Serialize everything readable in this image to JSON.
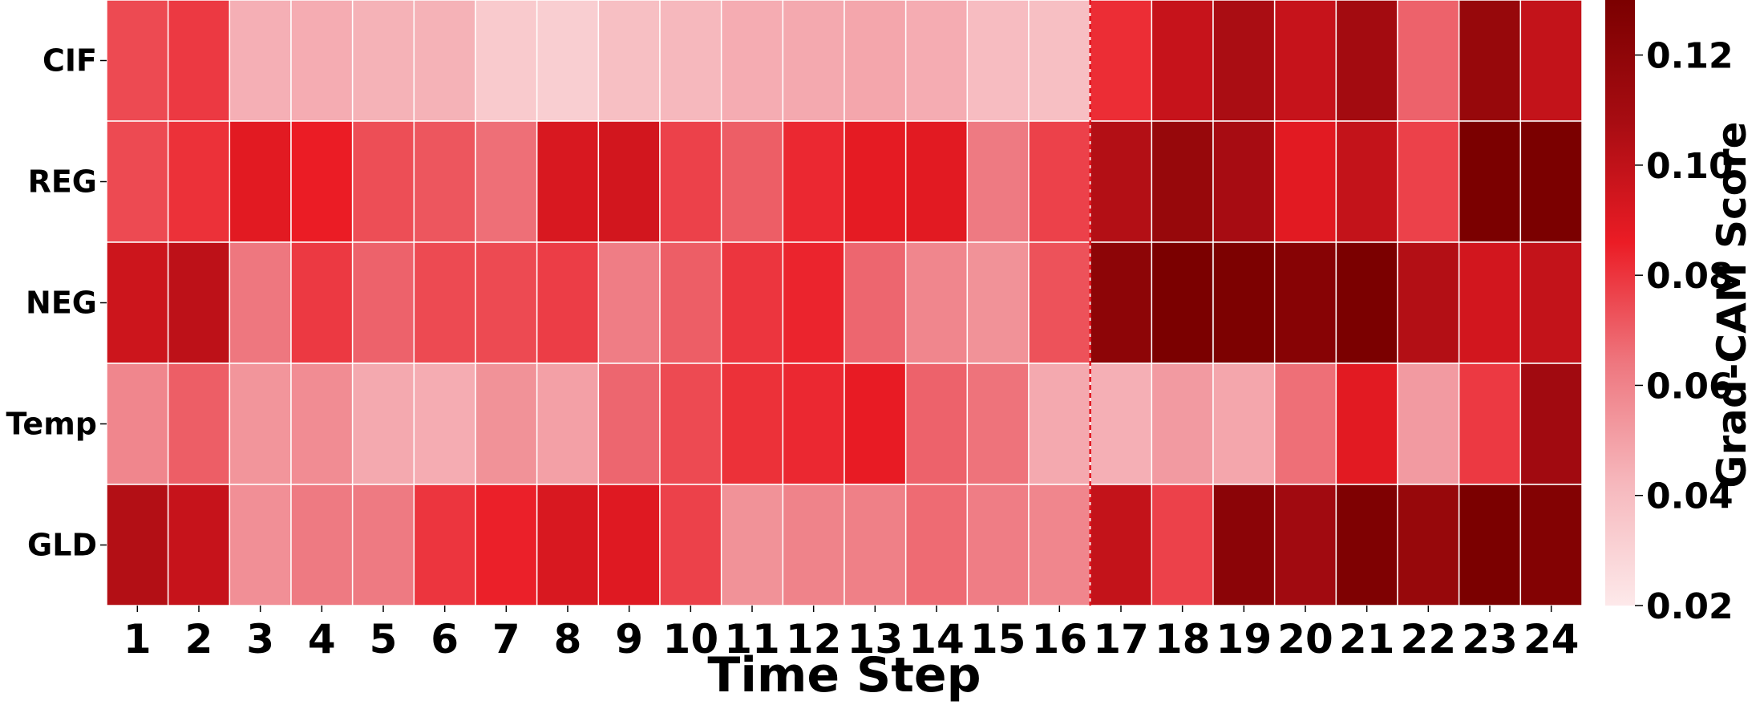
{
  "chart_data": {
    "type": "heatmap",
    "xlabel": "Time Step",
    "colorbar_label": "Grad-CAM Score",
    "x": [
      "1",
      "2",
      "3",
      "4",
      "5",
      "6",
      "7",
      "8",
      "9",
      "10",
      "11",
      "12",
      "13",
      "14",
      "15",
      "16",
      "17",
      "18",
      "19",
      "20",
      "21",
      "22",
      "23",
      "24"
    ],
    "rows": [
      "CIF",
      "REG",
      "NEG",
      "Temp",
      "GLD"
    ],
    "values": [
      [
        0.075,
        0.079,
        0.045,
        0.046,
        0.044,
        0.044,
        0.034,
        0.032,
        0.039,
        0.042,
        0.046,
        0.047,
        0.048,
        0.046,
        0.04,
        0.039,
        0.082,
        0.098,
        0.107,
        0.098,
        0.11,
        0.069,
        0.116,
        0.099
      ],
      [
        0.075,
        0.081,
        0.089,
        0.086,
        0.074,
        0.072,
        0.066,
        0.092,
        0.094,
        0.077,
        0.07,
        0.083,
        0.088,
        0.089,
        0.063,
        0.077,
        0.104,
        0.116,
        0.108,
        0.089,
        0.099,
        0.077,
        0.132,
        0.132
      ],
      [
        0.096,
        0.101,
        0.064,
        0.079,
        0.069,
        0.075,
        0.075,
        0.078,
        0.062,
        0.07,
        0.08,
        0.084,
        0.068,
        0.059,
        0.055,
        0.073,
        0.121,
        0.131,
        0.129,
        0.124,
        0.13,
        0.104,
        0.094,
        0.099
      ],
      [
        0.059,
        0.07,
        0.054,
        0.057,
        0.047,
        0.046,
        0.055,
        0.05,
        0.068,
        0.075,
        0.081,
        0.083,
        0.087,
        0.069,
        0.065,
        0.047,
        0.045,
        0.052,
        0.048,
        0.066,
        0.089,
        0.052,
        0.079,
        0.111
      ],
      [
        0.104,
        0.098,
        0.056,
        0.063,
        0.063,
        0.08,
        0.085,
        0.092,
        0.09,
        0.077,
        0.055,
        0.06,
        0.061,
        0.067,
        0.062,
        0.059,
        0.099,
        0.077,
        0.122,
        0.111,
        0.128,
        0.116,
        0.13,
        0.126
      ]
    ],
    "colorscale": {
      "min": 0.02,
      "max": 0.13,
      "colors": [
        "#fde9ea",
        "#f6b8bd",
        "#ee777f",
        "#eb1c25",
        "#a70c12",
        "#7b0000"
      ]
    },
    "colorbar_ticks": [
      "0.02",
      "0.04",
      "0.06",
      "0.08",
      "0.10",
      "0.12"
    ],
    "divider_after_step": 16,
    "divider_color": "#e0141c"
  }
}
